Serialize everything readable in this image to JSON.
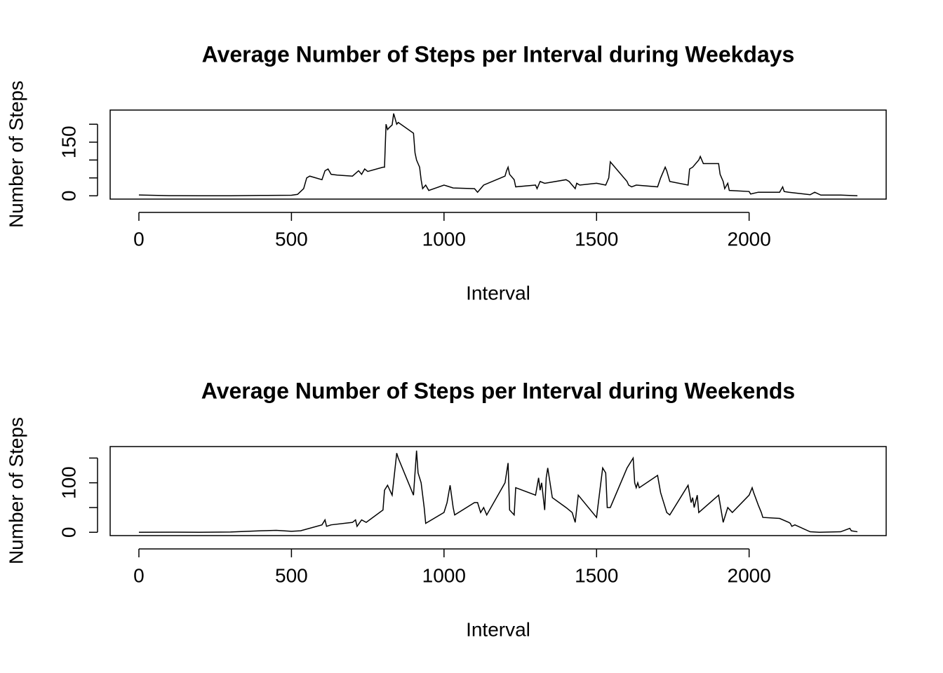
{
  "chart_data": [
    {
      "type": "line",
      "title": "Average Number of Steps per Interval during Weekdays",
      "x_label": "Interval",
      "y_label": "Number of Steps",
      "xlim": [
        -94.2,
        2449.2
      ],
      "xticks": [
        0,
        500,
        1000,
        1500,
        2000
      ],
      "ylim": [
        -9.2,
        239.6
      ],
      "yticks": [
        0,
        {
          "value": 50,
          "label": null
        },
        {
          "value": 100,
          "label": null
        },
        150,
        {
          "value": 200,
          "label": null
        }
      ],
      "grid": false,
      "series": [
        {
          "color": "#000000",
          "x": [
            0,
            100,
            200,
            300,
            400,
            500,
            520,
            540,
            550,
            560,
            600,
            610,
            620,
            630,
            650,
            700,
            720,
            730,
            740,
            750,
            800,
            805,
            810,
            815,
            820,
            830,
            835,
            840,
            845,
            850,
            900,
            905,
            910,
            915,
            920,
            925,
            930,
            940,
            950,
            1000,
            1030,
            1100,
            1110,
            1120,
            1130,
            1200,
            1205,
            1210,
            1215,
            1230,
            1235,
            1300,
            1305,
            1310,
            1315,
            1330,
            1400,
            1410,
            1430,
            1435,
            1445,
            1500,
            1530,
            1540,
            1545,
            1550,
            1600,
            1605,
            1615,
            1630,
            1700,
            1710,
            1715,
            1725,
            1730,
            1740,
            1800,
            1805,
            1815,
            1835,
            1840,
            1850,
            1900,
            1905,
            1915,
            1920,
            1930,
            1935,
            2000,
            2005,
            2030,
            2100,
            2110,
            2115,
            2130,
            2200,
            2215,
            2235,
            2300,
            2355
          ],
          "values": [
            2.3,
            0.4,
            0,
            0,
            1,
            1.5,
            4,
            20,
            50,
            55,
            45,
            70,
            75,
            60,
            58,
            55,
            70,
            60,
            75,
            68,
            80,
            80,
            200,
            185,
            190,
            198,
            230,
            215,
            200,
            205,
            175,
            120,
            100,
            90,
            80,
            45,
            20,
            30,
            15,
            30,
            22,
            20,
            10,
            20,
            30,
            55,
            70,
            80,
            60,
            45,
            25,
            30,
            20,
            30,
            40,
            35,
            45,
            40,
            20,
            35,
            30,
            35,
            30,
            50,
            95,
            90,
            40,
            30,
            25,
            30,
            25,
            50,
            60,
            80,
            70,
            40,
            30,
            75,
            80,
            100,
            110,
            90,
            90,
            60,
            40,
            20,
            35,
            15,
            12,
            5,
            10,
            10,
            25,
            12,
            10,
            3,
            10,
            2,
            2,
            0
          ]
        }
      ]
    },
    {
      "type": "line",
      "title": "Average Number of Steps per Interval during Weekends",
      "x_label": "Interval",
      "y_label": "Number of Steps",
      "xlim": [
        -94.2,
        2449.2
      ],
      "xticks": [
        0,
        500,
        1000,
        1500,
        2000
      ],
      "ylim": [
        -6.7,
        173.2
      ],
      "yticks": [
        0,
        {
          "value": 50,
          "label": null
        },
        100,
        {
          "value": 150,
          "label": null
        }
      ],
      "grid": false,
      "series": [
        {
          "color": "#000000",
          "x": [
            0,
            100,
            200,
            300,
            400,
            450,
            500,
            530,
            600,
            610,
            615,
            630,
            700,
            710,
            715,
            730,
            745,
            800,
            805,
            815,
            830,
            845,
            850,
            900,
            910,
            915,
            925,
            935,
            940,
            1000,
            1010,
            1020,
            1030,
            1035,
            1100,
            1110,
            1120,
            1130,
            1140,
            1200,
            1210,
            1215,
            1230,
            1235,
            1300,
            1310,
            1315,
            1320,
            1330,
            1335,
            1340,
            1355,
            1400,
            1420,
            1430,
            1440,
            1500,
            1520,
            1530,
            1535,
            1545,
            1600,
            1620,
            1625,
            1630,
            1635,
            1640,
            1700,
            1710,
            1720,
            1730,
            1740,
            1800,
            1810,
            1815,
            1820,
            1830,
            1835,
            1900,
            1915,
            1930,
            1945,
            2000,
            2010,
            2015,
            2030,
            2040,
            2045,
            2100,
            2130,
            2135,
            2140,
            2150,
            2200,
            2230,
            2300,
            2330,
            2335,
            2355
          ],
          "values": [
            0,
            0.2,
            0,
            0.5,
            3,
            4,
            2,
            3,
            15,
            25,
            12,
            15,
            20,
            25,
            12,
            25,
            20,
            45,
            85,
            95,
            75,
            160,
            150,
            75,
            165,
            120,
            100,
            50,
            18,
            40,
            60,
            95,
            50,
            35,
            60,
            60,
            40,
            50,
            35,
            100,
            140,
            45,
            35,
            90,
            75,
            110,
            85,
            100,
            45,
            110,
            130,
            70,
            50,
            40,
            20,
            75,
            30,
            130,
            120,
            50,
            50,
            130,
            150,
            100,
            90,
            100,
            90,
            115,
            80,
            60,
            40,
            35,
            95,
            60,
            70,
            50,
            75,
            40,
            75,
            20,
            50,
            40,
            75,
            90,
            80,
            55,
            40,
            30,
            28,
            20,
            18,
            12,
            15,
            1,
            0,
            1,
            8,
            3,
            1
          ]
        }
      ]
    }
  ]
}
